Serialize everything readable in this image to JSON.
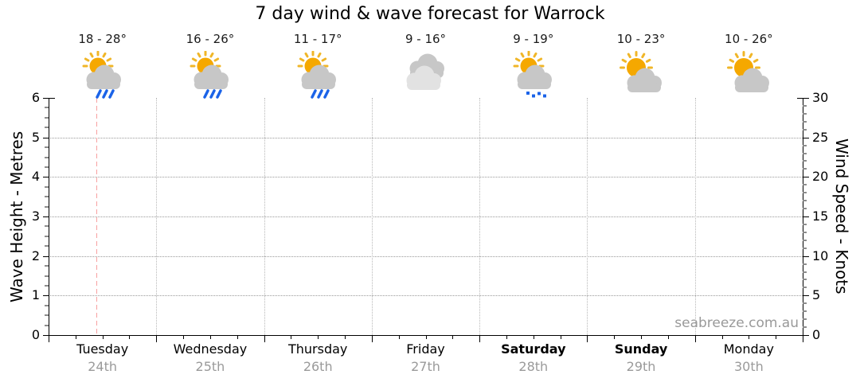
{
  "title": "7 day wind & wave forecast for Warrock",
  "watermark": "seabreeze.com.au",
  "axes": {
    "left": {
      "label": "Wave Height - Metres",
      "ticks": [
        "0",
        "1",
        "2",
        "3",
        "4",
        "5",
        "6"
      ]
    },
    "right": {
      "label": "Wind Speed - Knots",
      "ticks": [
        "0",
        "5",
        "10",
        "15",
        "20",
        "25",
        "30"
      ]
    }
  },
  "days": [
    {
      "name": "Tuesday",
      "date": "24th",
      "temp": "18 - 28°",
      "icon": "sun-cloud-rain",
      "bold": false
    },
    {
      "name": "Wednesday",
      "date": "25th",
      "temp": "16 - 26°",
      "icon": "sun-cloud-rain",
      "bold": false
    },
    {
      "name": "Thursday",
      "date": "26th",
      "temp": "11 - 17°",
      "icon": "sun-cloud-rain",
      "bold": false
    },
    {
      "name": "Friday",
      "date": "27th",
      "temp": "9 - 16°",
      "icon": "cloudy",
      "bold": false
    },
    {
      "name": "Saturday",
      "date": "28th",
      "temp": "9 - 19°",
      "icon": "sun-cloud-drizzle",
      "bold": true
    },
    {
      "name": "Sunday",
      "date": "29th",
      "temp": "10 - 23°",
      "icon": "sun-cloud",
      "bold": true
    },
    {
      "name": "Monday",
      "date": "30th",
      "temp": "10 - 26°",
      "icon": "sun-cloud",
      "bold": false
    }
  ],
  "now_marker": {
    "day": "Tuesday",
    "fraction_of_day": 0.44
  },
  "colors": {
    "sun": "#F5A800",
    "sun_rays": "#F0B628",
    "cloud": "#C7C7C7",
    "cloud_light": "#E2E2E2",
    "rain": "#1B63E8",
    "grid": "#999999",
    "day_boundary": "#B8B8B8",
    "marker": "#F8A0A0",
    "date_text": "#9A9A9A",
    "watermark": "#999999"
  },
  "chart_data": {
    "type": "line",
    "title": "7 day wind & wave forecast for Warrock",
    "categories": [
      "Tuesday 24th",
      "Wednesday 25th",
      "Thursday 26th",
      "Friday 27th",
      "Saturday 28th",
      "Sunday 29th",
      "Monday 30th"
    ],
    "y_left": {
      "label": "Wave Height - Metres",
      "range": [
        0,
        6
      ],
      "ticks": [
        0,
        1,
        2,
        3,
        4,
        5,
        6
      ],
      "gridlines": "dotted horizontal at 1-5"
    },
    "y_right": {
      "label": "Wind Speed - Knots",
      "range": [
        0,
        30
      ],
      "ticks": [
        0,
        5,
        10,
        15,
        20,
        25,
        30
      ]
    },
    "series": [],
    "note": "Plot area is empty: no wave-height or wind-speed curves are drawn. Chart shows per-day temperature ranges and weather icons above the axes, plus a dashed current-time marker on Tuesday.",
    "temperature_ranges_c": [
      [
        18,
        28
      ],
      [
        16,
        26
      ],
      [
        11,
        17
      ],
      [
        9,
        16
      ],
      [
        9,
        19
      ],
      [
        10,
        23
      ],
      [
        10,
        26
      ]
    ],
    "conditions": [
      "partly-cloudy-rain",
      "partly-cloudy-rain",
      "partly-cloudy-rain",
      "cloudy",
      "partly-cloudy-drizzle",
      "partly-cloudy",
      "partly-cloudy"
    ],
    "legend": "none",
    "grid": {
      "horizontal_dotted": true,
      "vertical_dotted_day_boundaries": true
    },
    "current_time_marker": {
      "day": "Tuesday",
      "style": "dashed",
      "color": "#F8A0A0"
    }
  }
}
